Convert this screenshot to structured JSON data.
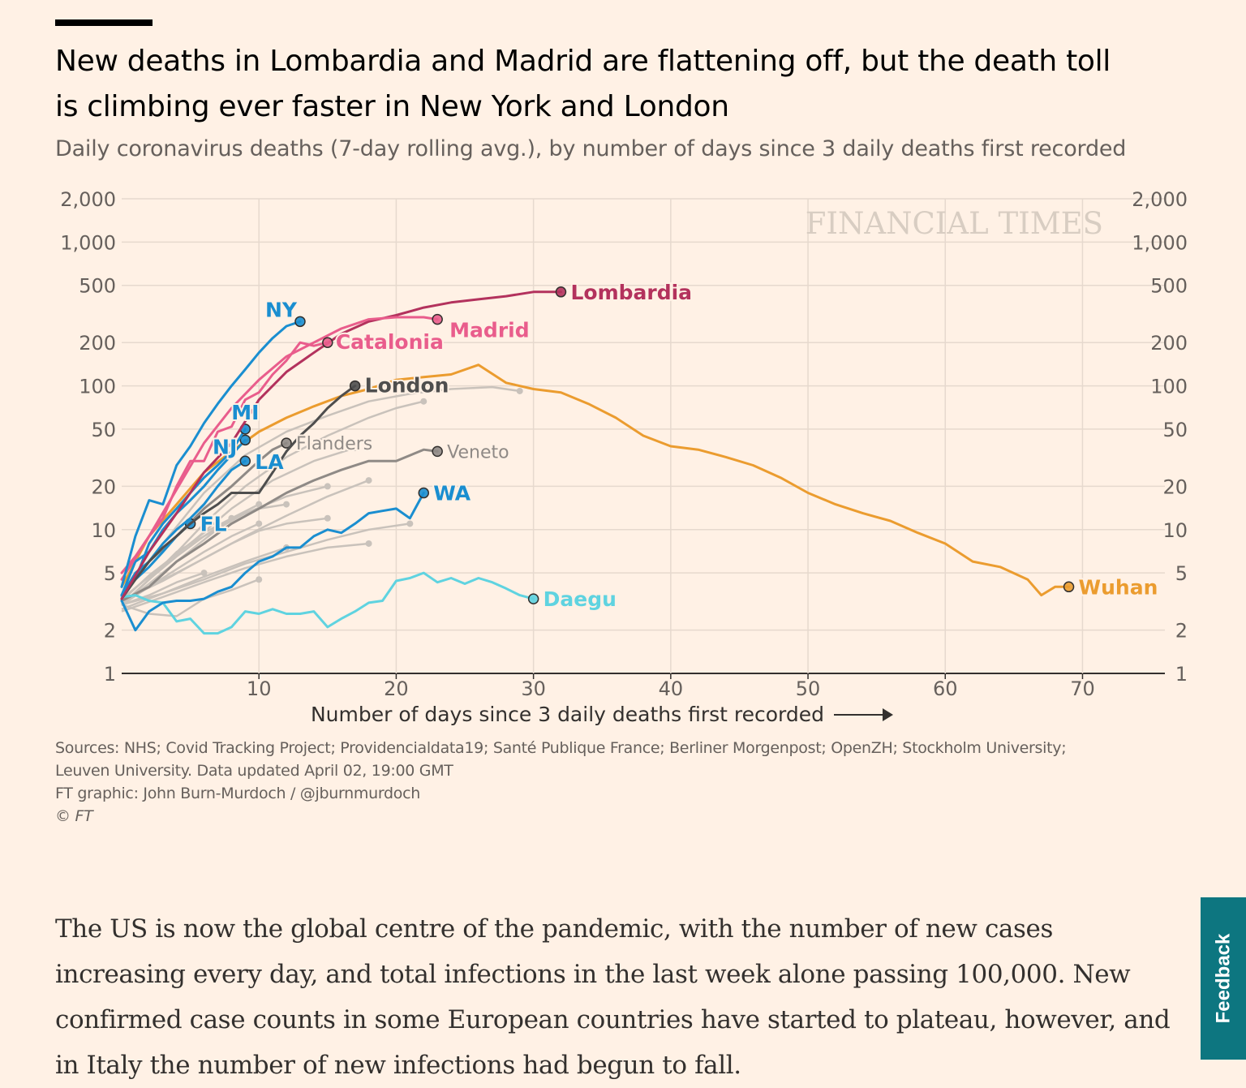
{
  "article": {
    "title_line1": "New deaths in Lombardia and Madrid are flattening off, but the death toll",
    "title_line2": "is climbing ever faster in New York and London",
    "subtitle": "Daily coronavirus deaths (7-day rolling avg.), by number of days since 3 daily deaths first recorded",
    "sources_line1": "Sources: NHS; Covid Tracking Project; Providencialdata19; Santé Publique France; Berliner Morgenpost; OpenZH; Stockholm University;",
    "sources_line2": "Leuven University. Data updated April 02, 19:00 GMT",
    "credit": "FT graphic: John Burn-Murdoch / @jburnmurdoch",
    "copyright": "© FT",
    "watermark": "FINANCIAL TIMES",
    "paragraph": "The US is now the global centre of the pandemic, with the number of new cases increasing every day, and total infections in the last week alone passing 100,000. New confirmed case counts in some European countries have started to plateau, however, and in Italy the number of new infections had begun to fall.",
    "feedback_label": "Feedback"
  },
  "chart_data": {
    "type": "line",
    "title": "New deaths in Lombardia and Madrid are flattening off, but the death toll is climbing ever faster in New York and London",
    "subtitle": "Daily coronavirus deaths (7-day rolling avg.), by number of days since 3 daily deaths first recorded",
    "xlabel": "Number of days since 3 daily deaths first recorded",
    "ylabel": "",
    "y_scale": "log",
    "xlim": [
      0,
      76
    ],
    "ylim": [
      1,
      2000
    ],
    "x_ticks": [
      10,
      20,
      30,
      40,
      50,
      60,
      70
    ],
    "x_tick_labels": [
      "10",
      "20",
      "30",
      "40",
      "50",
      "60",
      "70"
    ],
    "y_ticks": [
      1,
      2,
      5,
      10,
      20,
      50,
      100,
      200,
      500,
      1000,
      2000
    ],
    "y_tick_labels": [
      "1",
      "2",
      "5",
      "10",
      "20",
      "50",
      "100",
      "200",
      "500",
      "1,000",
      "2,000"
    ],
    "grid": true,
    "legend": "direct labels at line ends",
    "colors": {
      "lombardia": "#b3325d",
      "catalonia": "#e95d8c",
      "us_blue": "#1a8ed0",
      "london": "#4e4e4e",
      "wuhan": "#eb9c2f",
      "daegu": "#5fd3e0",
      "grey_labeled": "#8f8a86",
      "background_series": "#c9c2bb"
    },
    "series": [
      {
        "name": "Lombardia",
        "color": "#b3325d",
        "x": [
          0,
          2,
          4,
          6,
          8,
          10,
          12,
          14,
          16,
          18,
          20,
          22,
          24,
          26,
          28,
          30,
          32
        ],
        "y": [
          3.3,
          7,
          13,
          25,
          40,
          80,
          125,
          170,
          230,
          280,
          310,
          350,
          380,
          400,
          420,
          450,
          450
        ]
      },
      {
        "name": "Madrid",
        "color": "#e95d8c",
        "x": [
          0,
          2,
          4,
          6,
          8,
          10,
          12,
          14,
          16,
          18,
          20,
          22,
          23
        ],
        "y": [
          4.5,
          9,
          19,
          40,
          70,
          110,
          160,
          200,
          250,
          290,
          300,
          300,
          290
        ]
      },
      {
        "name": "Catalonia",
        "color": "#e95d8c",
        "x": [
          0,
          1,
          2,
          3,
          4,
          5,
          6,
          7,
          8,
          9,
          10,
          11,
          12,
          13,
          14,
          15
        ],
        "y": [
          5,
          6.5,
          9,
          12,
          20,
          30,
          30,
          48,
          52,
          80,
          90,
          120,
          150,
          200,
          190,
          200
        ]
      },
      {
        "name": "NY",
        "color": "#1a8ed0",
        "x": [
          0,
          1,
          2,
          3,
          4,
          5,
          6,
          7,
          8,
          9,
          10,
          11,
          12,
          13
        ],
        "y": [
          4,
          9,
          16,
          15,
          28,
          38,
          55,
          75,
          100,
          130,
          170,
          215,
          260,
          280
        ]
      },
      {
        "name": "MI",
        "color": "#1a8ed0",
        "x": [
          0,
          1,
          2,
          3,
          4,
          5,
          6,
          7,
          8,
          9
        ],
        "y": [
          3.5,
          4.5,
          8,
          11,
          14,
          18,
          23,
          28,
          35,
          50
        ]
      },
      {
        "name": "NJ",
        "color": "#1a8ed0",
        "x": [
          0,
          1,
          2,
          3,
          4,
          5,
          6,
          7,
          8,
          9
        ],
        "y": [
          3.5,
          6,
          7,
          10,
          13,
          16,
          20,
          26,
          33,
          42
        ]
      },
      {
        "name": "LA",
        "color": "#1a8ed0",
        "x": [
          0,
          1,
          2,
          3,
          4,
          5,
          6,
          7,
          8,
          9
        ],
        "y": [
          3.5,
          5,
          6,
          8,
          10,
          12,
          15,
          20,
          26,
          30
        ]
      },
      {
        "name": "FL",
        "color": "#1a8ed0",
        "x": [
          0,
          1,
          2,
          3,
          4,
          5
        ],
        "y": [
          3.5,
          4.5,
          5.5,
          7,
          9,
          11
        ]
      },
      {
        "name": "WA",
        "color": "#1a8ed0",
        "x": [
          0,
          1,
          2,
          3,
          4,
          5,
          6,
          7,
          8,
          9,
          10,
          11,
          12,
          13,
          14,
          15,
          16,
          17,
          18,
          19,
          20,
          21,
          22
        ],
        "y": [
          3.2,
          2,
          2.7,
          3.1,
          3.2,
          3.2,
          3.3,
          3.7,
          4,
          5,
          6,
          6.5,
          7.5,
          7.5,
          9,
          10,
          9.5,
          11,
          13,
          13.5,
          14,
          12,
          18
        ]
      },
      {
        "name": "London",
        "color": "#4e4e4e",
        "x": [
          0,
          1,
          2,
          3,
          4,
          5,
          6,
          7,
          8,
          9,
          10,
          11,
          12,
          13,
          14,
          15,
          16,
          17
        ],
        "y": [
          3.3,
          4.5,
          6,
          7.5,
          9,
          11,
          13,
          15,
          18,
          18,
          18,
          25,
          35,
          45,
          55,
          70,
          85,
          100
        ]
      },
      {
        "name": "Flanders",
        "color": "#8f8a86",
        "x": [
          0,
          2,
          4,
          6,
          8,
          10,
          11,
          12
        ],
        "y": [
          3.5,
          6,
          9,
          14,
          20,
          30,
          36,
          40
        ]
      },
      {
        "name": "Veneto",
        "color": "#8f8a86",
        "x": [
          0,
          2,
          4,
          6,
          8,
          10,
          12,
          14,
          16,
          18,
          20,
          22,
          23
        ],
        "y": [
          3.2,
          4,
          6,
          8,
          11,
          14,
          18,
          22,
          26,
          30,
          30,
          36,
          35
        ]
      },
      {
        "name": "Wuhan",
        "color": "#eb9c2f",
        "x": [
          0,
          2,
          4,
          6,
          8,
          10,
          12,
          14,
          16,
          18,
          20,
          22,
          24,
          26,
          28,
          30,
          32,
          34,
          36,
          38,
          40,
          42,
          44,
          46,
          48,
          50,
          52,
          54,
          56,
          58,
          60,
          62,
          64,
          66,
          67,
          68,
          69
        ],
        "y": [
          4,
          9,
          15,
          25,
          35,
          48,
          60,
          72,
          85,
          95,
          110,
          115,
          120,
          140,
          105,
          95,
          90,
          75,
          60,
          45,
          38,
          36,
          32,
          28,
          23,
          18,
          15,
          13,
          11.5,
          9.5,
          8,
          6,
          5.5,
          4.5,
          3.5,
          4,
          4
        ]
      },
      {
        "name": "Daegu",
        "color": "#5fd3e0",
        "x": [
          0,
          1,
          2,
          3,
          4,
          5,
          6,
          7,
          8,
          9,
          10,
          11,
          12,
          13,
          14,
          15,
          16,
          17,
          18,
          19,
          20,
          21,
          22,
          23,
          24,
          25,
          26,
          27,
          28,
          29,
          30
        ],
        "y": [
          3.4,
          3.5,
          3.2,
          3.1,
          2.3,
          2.4,
          1.9,
          1.9,
          2.1,
          2.7,
          2.6,
          2.8,
          2.6,
          2.6,
          2.7,
          2.1,
          2.4,
          2.7,
          3.1,
          3.2,
          4.4,
          4.6,
          5,
          4.3,
          4.6,
          4.2,
          4.6,
          4.3,
          3.9,
          3.5,
          3.3
        ]
      }
    ],
    "background_series": [
      {
        "x": [
          0,
          3,
          6,
          9,
          12,
          15,
          18,
          21,
          24,
          27,
          29
        ],
        "y": [
          3.5,
          8,
          18,
          33,
          48,
          62,
          78,
          88,
          95,
          98,
          92
        ]
      },
      {
        "x": [
          0,
          3,
          6,
          9,
          12,
          15,
          18,
          20,
          22
        ],
        "y": [
          3,
          5.5,
          11,
          20,
          32,
          45,
          60,
          70,
          78
        ]
      },
      {
        "x": [
          0,
          2,
          5,
          8,
          11,
          14,
          17
        ],
        "y": [
          3.2,
          4.8,
          8,
          14,
          22,
          30,
          37
        ]
      },
      {
        "x": [
          0,
          2,
          4,
          6,
          9,
          12,
          15
        ],
        "y": [
          3,
          4.5,
          7,
          9,
          13,
          17,
          20
        ]
      },
      {
        "x": [
          0,
          2,
          4,
          6,
          8,
          10
        ],
        "y": [
          3,
          4.2,
          6,
          8.5,
          12,
          15
        ]
      },
      {
        "x": [
          0,
          3,
          6,
          9,
          12,
          15,
          18,
          21
        ],
        "y": [
          3,
          3.6,
          4.5,
          5.8,
          7,
          8.5,
          10,
          11
        ]
      },
      {
        "x": [
          0,
          2,
          4,
          6,
          8,
          10,
          12,
          15
        ],
        "y": [
          3.2,
          4,
          5,
          6.3,
          8,
          9.8,
          11,
          12
        ]
      },
      {
        "x": [
          0,
          3,
          6,
          9,
          12
        ],
        "y": [
          2.8,
          3.6,
          4.7,
          6,
          7.5
        ]
      },
      {
        "x": [
          0,
          2,
          4,
          6,
          8,
          10,
          12
        ],
        "y": [
          3,
          4.5,
          6.5,
          9,
          12,
          14,
          15
        ]
      },
      {
        "x": [
          0,
          2,
          4,
          6,
          8,
          10
        ],
        "y": [
          3,
          2.6,
          2.5,
          3.3,
          3.8,
          4.5
        ]
      },
      {
        "x": [
          0,
          3,
          6,
          9,
          12,
          15,
          18
        ],
        "y": [
          2.7,
          3.4,
          4.3,
          5.4,
          6.5,
          7.5,
          8
        ]
      },
      {
        "x": [
          0,
          2,
          4,
          6,
          8,
          10
        ],
        "y": [
          3,
          4,
          5.3,
          7,
          9,
          11
        ]
      },
      {
        "x": [
          0,
          2,
          4,
          6
        ],
        "y": [
          3,
          3.5,
          4.3,
          5
        ]
      },
      {
        "x": [
          0,
          3,
          6,
          9,
          12,
          15,
          18
        ],
        "y": [
          3.2,
          4.4,
          6.3,
          9,
          12.5,
          17,
          22
        ]
      },
      {
        "x": [
          0,
          2,
          4,
          6,
          8
        ],
        "y": [
          3.3,
          4.7,
          6.8,
          9.5,
          12
        ]
      }
    ]
  }
}
